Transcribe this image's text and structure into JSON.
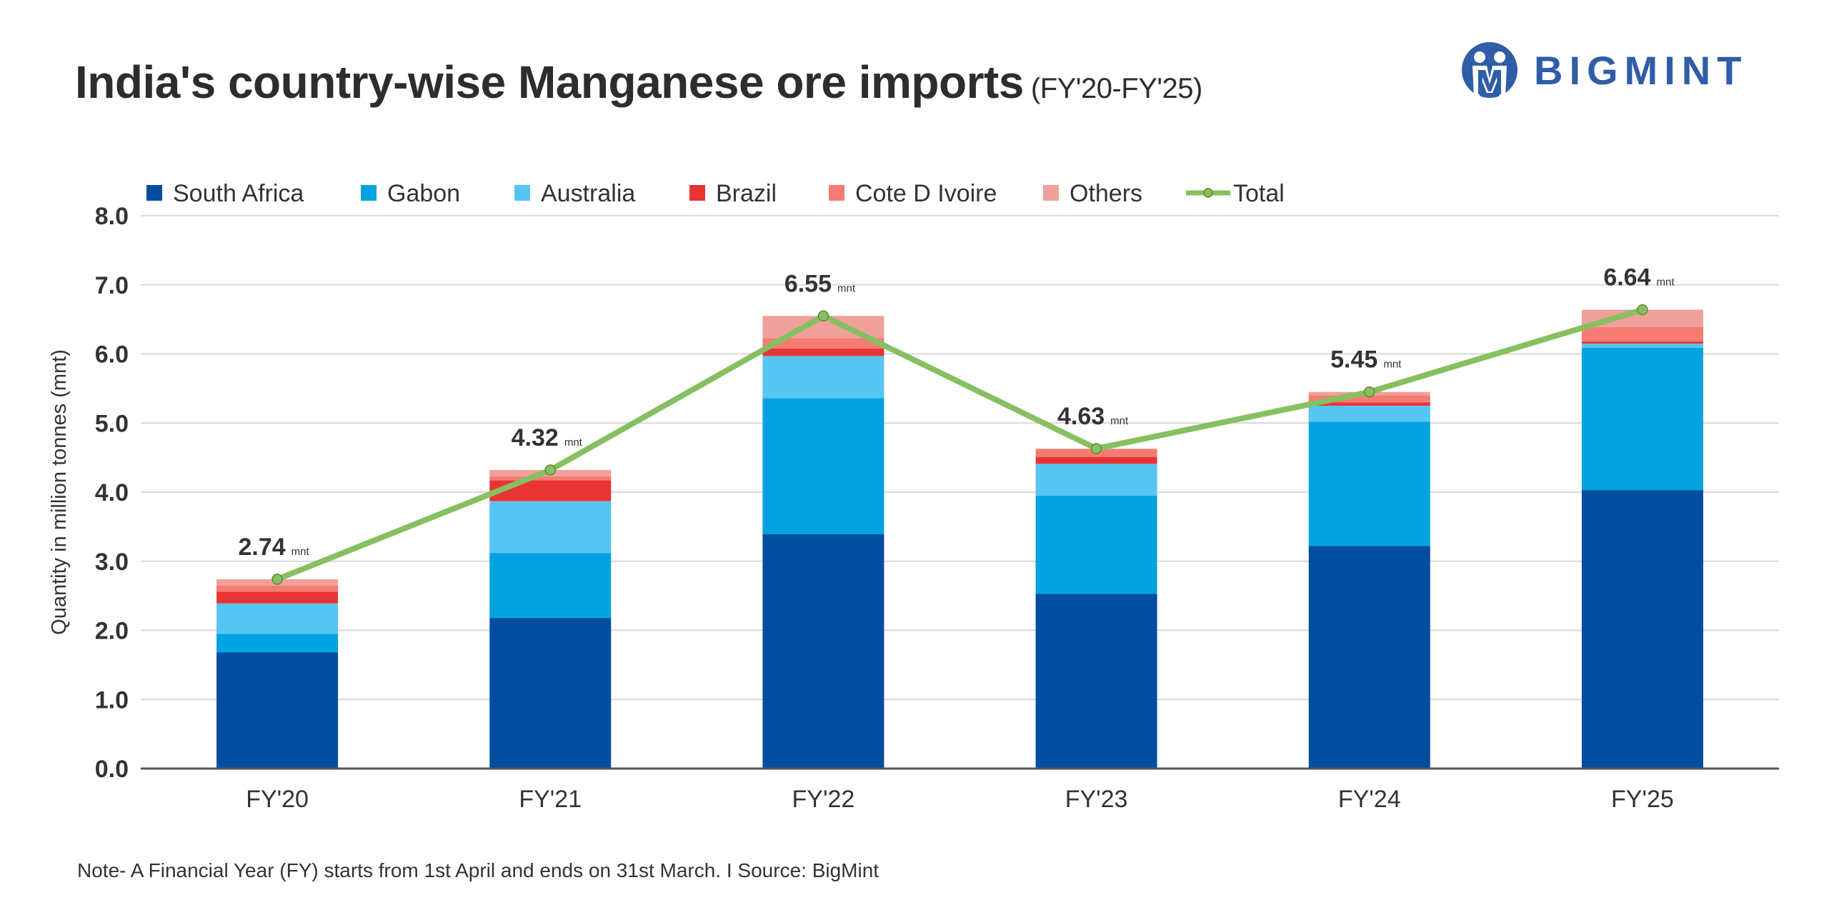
{
  "header": {
    "title": "India's country-wise Manganese ore imports",
    "subtitle": "(FY'20-FY'25)",
    "logo_text": "BIGMINT"
  },
  "footer": {
    "note": "Note- A Financial Year (FY) starts from 1st April and ends on 31st March.  I  Source: BigMint"
  },
  "chart_data": {
    "type": "bar",
    "stacked": true,
    "title": "India's country-wise Manganese ore imports (FY'20-FY'25)",
    "xlabel": "",
    "ylabel": "Quantity in million tonnes (mnt)",
    "ylim": [
      0,
      8
    ],
    "yticks": [
      "0.0",
      "1.0",
      "2.0",
      "3.0",
      "4.0",
      "5.0",
      "6.0",
      "7.0",
      "8.0"
    ],
    "grid": true,
    "legend_position": "top",
    "categories": [
      "FY'20",
      "FY'21",
      "FY'22",
      "FY'23",
      "FY'24",
      "FY'25"
    ],
    "series": [
      {
        "name": "South Africa",
        "color": "#014ea0",
        "values": [
          1.68,
          2.18,
          3.39,
          2.53,
          3.22,
          4.03
        ]
      },
      {
        "name": "Gabon",
        "color": "#00a3e0",
        "values": [
          0.27,
          0.94,
          1.97,
          1.42,
          1.8,
          2.06
        ]
      },
      {
        "name": "Australia",
        "color": "#56c5f2",
        "values": [
          0.44,
          0.75,
          0.61,
          0.46,
          0.23,
          0.06
        ]
      },
      {
        "name": "Brazil",
        "color": "#e93434",
        "values": [
          0.17,
          0.3,
          0.11,
          0.1,
          0.05,
          0.03
        ]
      },
      {
        "name": "Cote D Ivoire",
        "color": "#f47c73",
        "values": [
          0.09,
          0.06,
          0.15,
          0.11,
          0.1,
          0.21
        ]
      },
      {
        "name": "Others",
        "color": "#f0a09a",
        "values": [
          0.09,
          0.09,
          0.32,
          0.01,
          0.05,
          0.25
        ]
      }
    ],
    "line": {
      "name": "Total",
      "color": "#86c060",
      "values": [
        2.74,
        4.32,
        6.55,
        4.63,
        5.45,
        6.64
      ]
    },
    "data_labels": [
      "2.74",
      "4.32",
      "6.55",
      "4.63",
      "5.45",
      "6.64"
    ],
    "data_label_unit": "mnt"
  }
}
